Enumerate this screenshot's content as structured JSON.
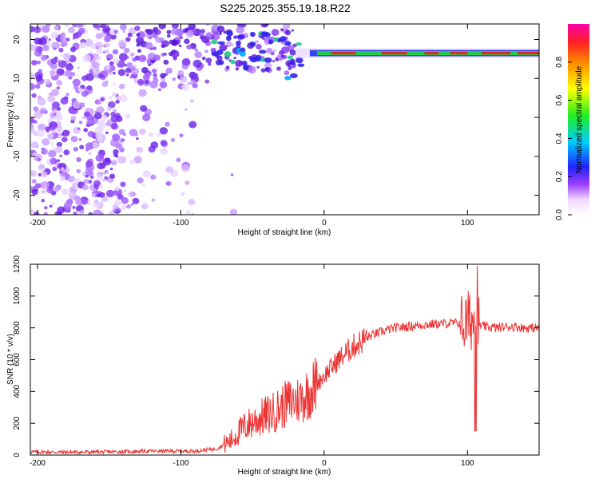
{
  "title": "S225.2025.355.19.18.R22",
  "chart_data": [
    {
      "type": "heatmap",
      "name": "spectrogram",
      "xlabel": "Height of straight line (km)",
      "ylabel": "Frequency (Hz)",
      "xlim": [
        -205,
        150
      ],
      "ylim": [
        -25,
        24
      ],
      "xticks": [
        -200,
        -100,
        0,
        100
      ],
      "xtick_labels": [
        "-200",
        "-100",
        "0",
        "100"
      ],
      "yticks": [
        -20,
        -10,
        0,
        10,
        20
      ],
      "ytick_labels": [
        "-20",
        "-10",
        "0",
        "10",
        "20"
      ],
      "colorbar": {
        "label": "Normalized spectral amplitude",
        "range": [
          0,
          1
        ],
        "ticks": [
          0,
          0.2,
          0.4,
          0.6,
          0.8
        ],
        "tick_labels": [
          "0.0",
          "0.2",
          "0.4",
          "0.6",
          "0.8"
        ]
      },
      "features": {
        "noise_region_km": [
          -205,
          -20
        ],
        "signal_line_km": [
          -20,
          150
        ],
        "signal_line_freq_hz": 16.5
      }
    },
    {
      "type": "line",
      "name": "snr",
      "xlabel": "Height of straight line (km)",
      "ylabel": "SNR (10 * v/v)",
      "xlim": [
        -205,
        150
      ],
      "ylim": [
        0,
        1200
      ],
      "xticks": [
        -200,
        -100,
        0,
        100
      ],
      "xtick_labels": [
        "-200",
        "-100",
        "0",
        "100"
      ],
      "yticks": [
        0,
        200,
        400,
        600,
        800,
        1000,
        1200
      ],
      "ytick_labels": [
        "0",
        "200",
        "400",
        "600",
        "800",
        "1000",
        "1200"
      ],
      "series": [
        {
          "name": "SNR",
          "color": "#ee3333",
          "x": [
            -205,
            -180,
            -150,
            -120,
            -90,
            -75,
            -65,
            -60,
            -55,
            -50,
            -45,
            -40,
            -35,
            -30,
            -25,
            -20,
            -15,
            -10,
            -5,
            0,
            5,
            10,
            15,
            20,
            25,
            30,
            35,
            40,
            45,
            50,
            60,
            70,
            80,
            90,
            95,
            98,
            100,
            103,
            105,
            107,
            110,
            120,
            130,
            140,
            150
          ],
          "y": [
            20,
            18,
            20,
            25,
            25,
            40,
            90,
            140,
            180,
            210,
            230,
            250,
            270,
            300,
            330,
            340,
            360,
            400,
            450,
            500,
            550,
            600,
            640,
            680,
            710,
            740,
            760,
            775,
            790,
            800,
            810,
            820,
            825,
            830,
            830,
            820,
            840,
            850,
            830,
            820,
            810,
            800,
            810,
            800,
            800
          ]
        }
      ]
    }
  ],
  "colors": {
    "line": "#ee3333",
    "signal_core": "#ee2222",
    "signal_halo": "#22cc44",
    "noise": "#7a2ee0"
  }
}
